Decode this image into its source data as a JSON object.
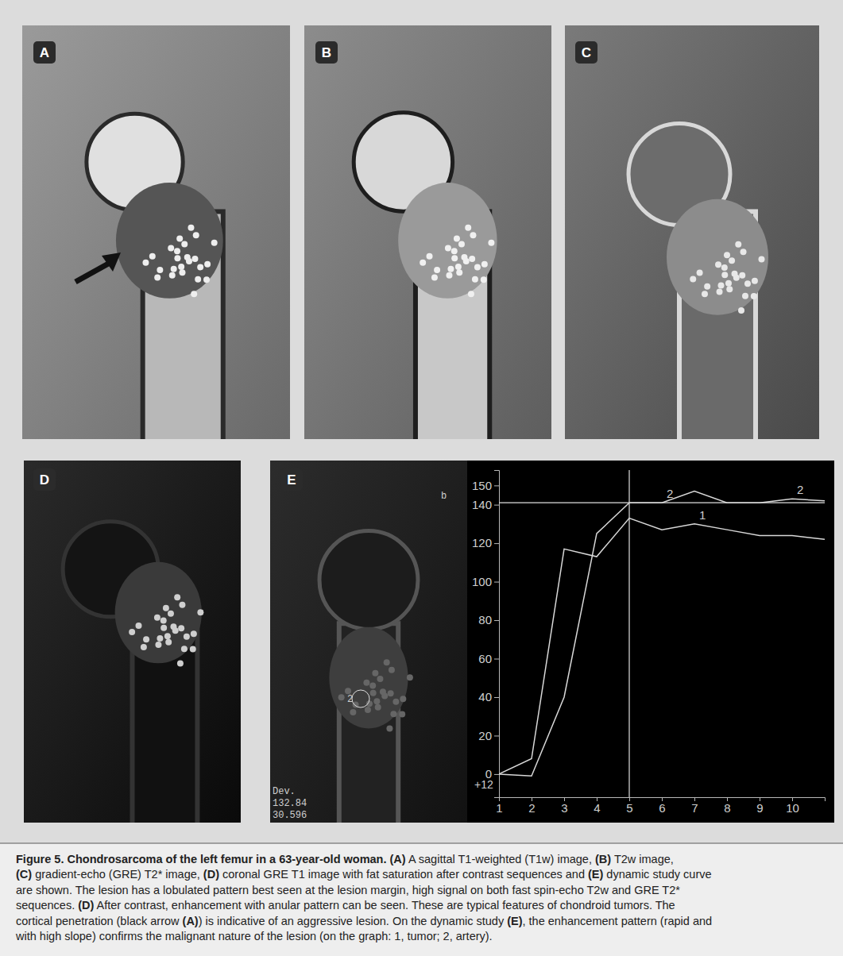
{
  "panels": {
    "labels": [
      "A",
      "B",
      "C",
      "D",
      "E"
    ]
  },
  "panel_e_text": [
    "Dev.",
    "132.84",
    "30.596",
    "2",
    "b"
  ],
  "chart_data": {
    "type": "line",
    "x": [
      1,
      2,
      3,
      4,
      5,
      6,
      7,
      8,
      9,
      10,
      11
    ],
    "series": [
      {
        "name": "1",
        "color": "#d8d8d8",
        "values": [
          0,
          8,
          117,
          113,
          133,
          127,
          130,
          127,
          124,
          124,
          122
        ]
      },
      {
        "name": "2",
        "color": "#d8d8d8",
        "values": [
          0,
          -1,
          40,
          125,
          141,
          141,
          147,
          141,
          141,
          143,
          142
        ]
      }
    ],
    "xlim": [
      1,
      11
    ],
    "ylim": [
      -12,
      158
    ],
    "xticks": [
      1,
      2,
      3,
      4,
      5,
      6,
      7,
      8,
      9,
      10
    ],
    "yticks": [
      0,
      20,
      40,
      60,
      80,
      100,
      120,
      140,
      150
    ],
    "annotations": [
      "+12"
    ],
    "reference_lines": {
      "x": 5,
      "y": 141
    }
  },
  "caption": {
    "title": "Figure 5. Chondrosarcoma of the left femur in a 63-year-old woman.",
    "lines": [
      " (A) A sagittal T1-weighted (T1w) image, (B) T2w image,",
      "(C) gradient-echo (GRE) T2* image, (D) coronal GRE T1 image with fat saturation after contrast sequences and (E) dynamic study curve",
      "are shown. The lesion has a lobulated pattern best seen at the lesion margin, high signal on both fast spin-echo T2w and GRE T2*",
      "sequences. (D) After contrast, enhancement with anular pattern can be seen. These are typical features of chondroid tumors. The",
      "cortical penetration (black arrow (A)) is indicative of an aggressive lesion. On the dynamic study (E), the enhancement pattern (rapid and",
      "with high slope) confirms the malignant nature of the lesion (on the graph: 1, tumor; 2, artery)."
    ]
  }
}
